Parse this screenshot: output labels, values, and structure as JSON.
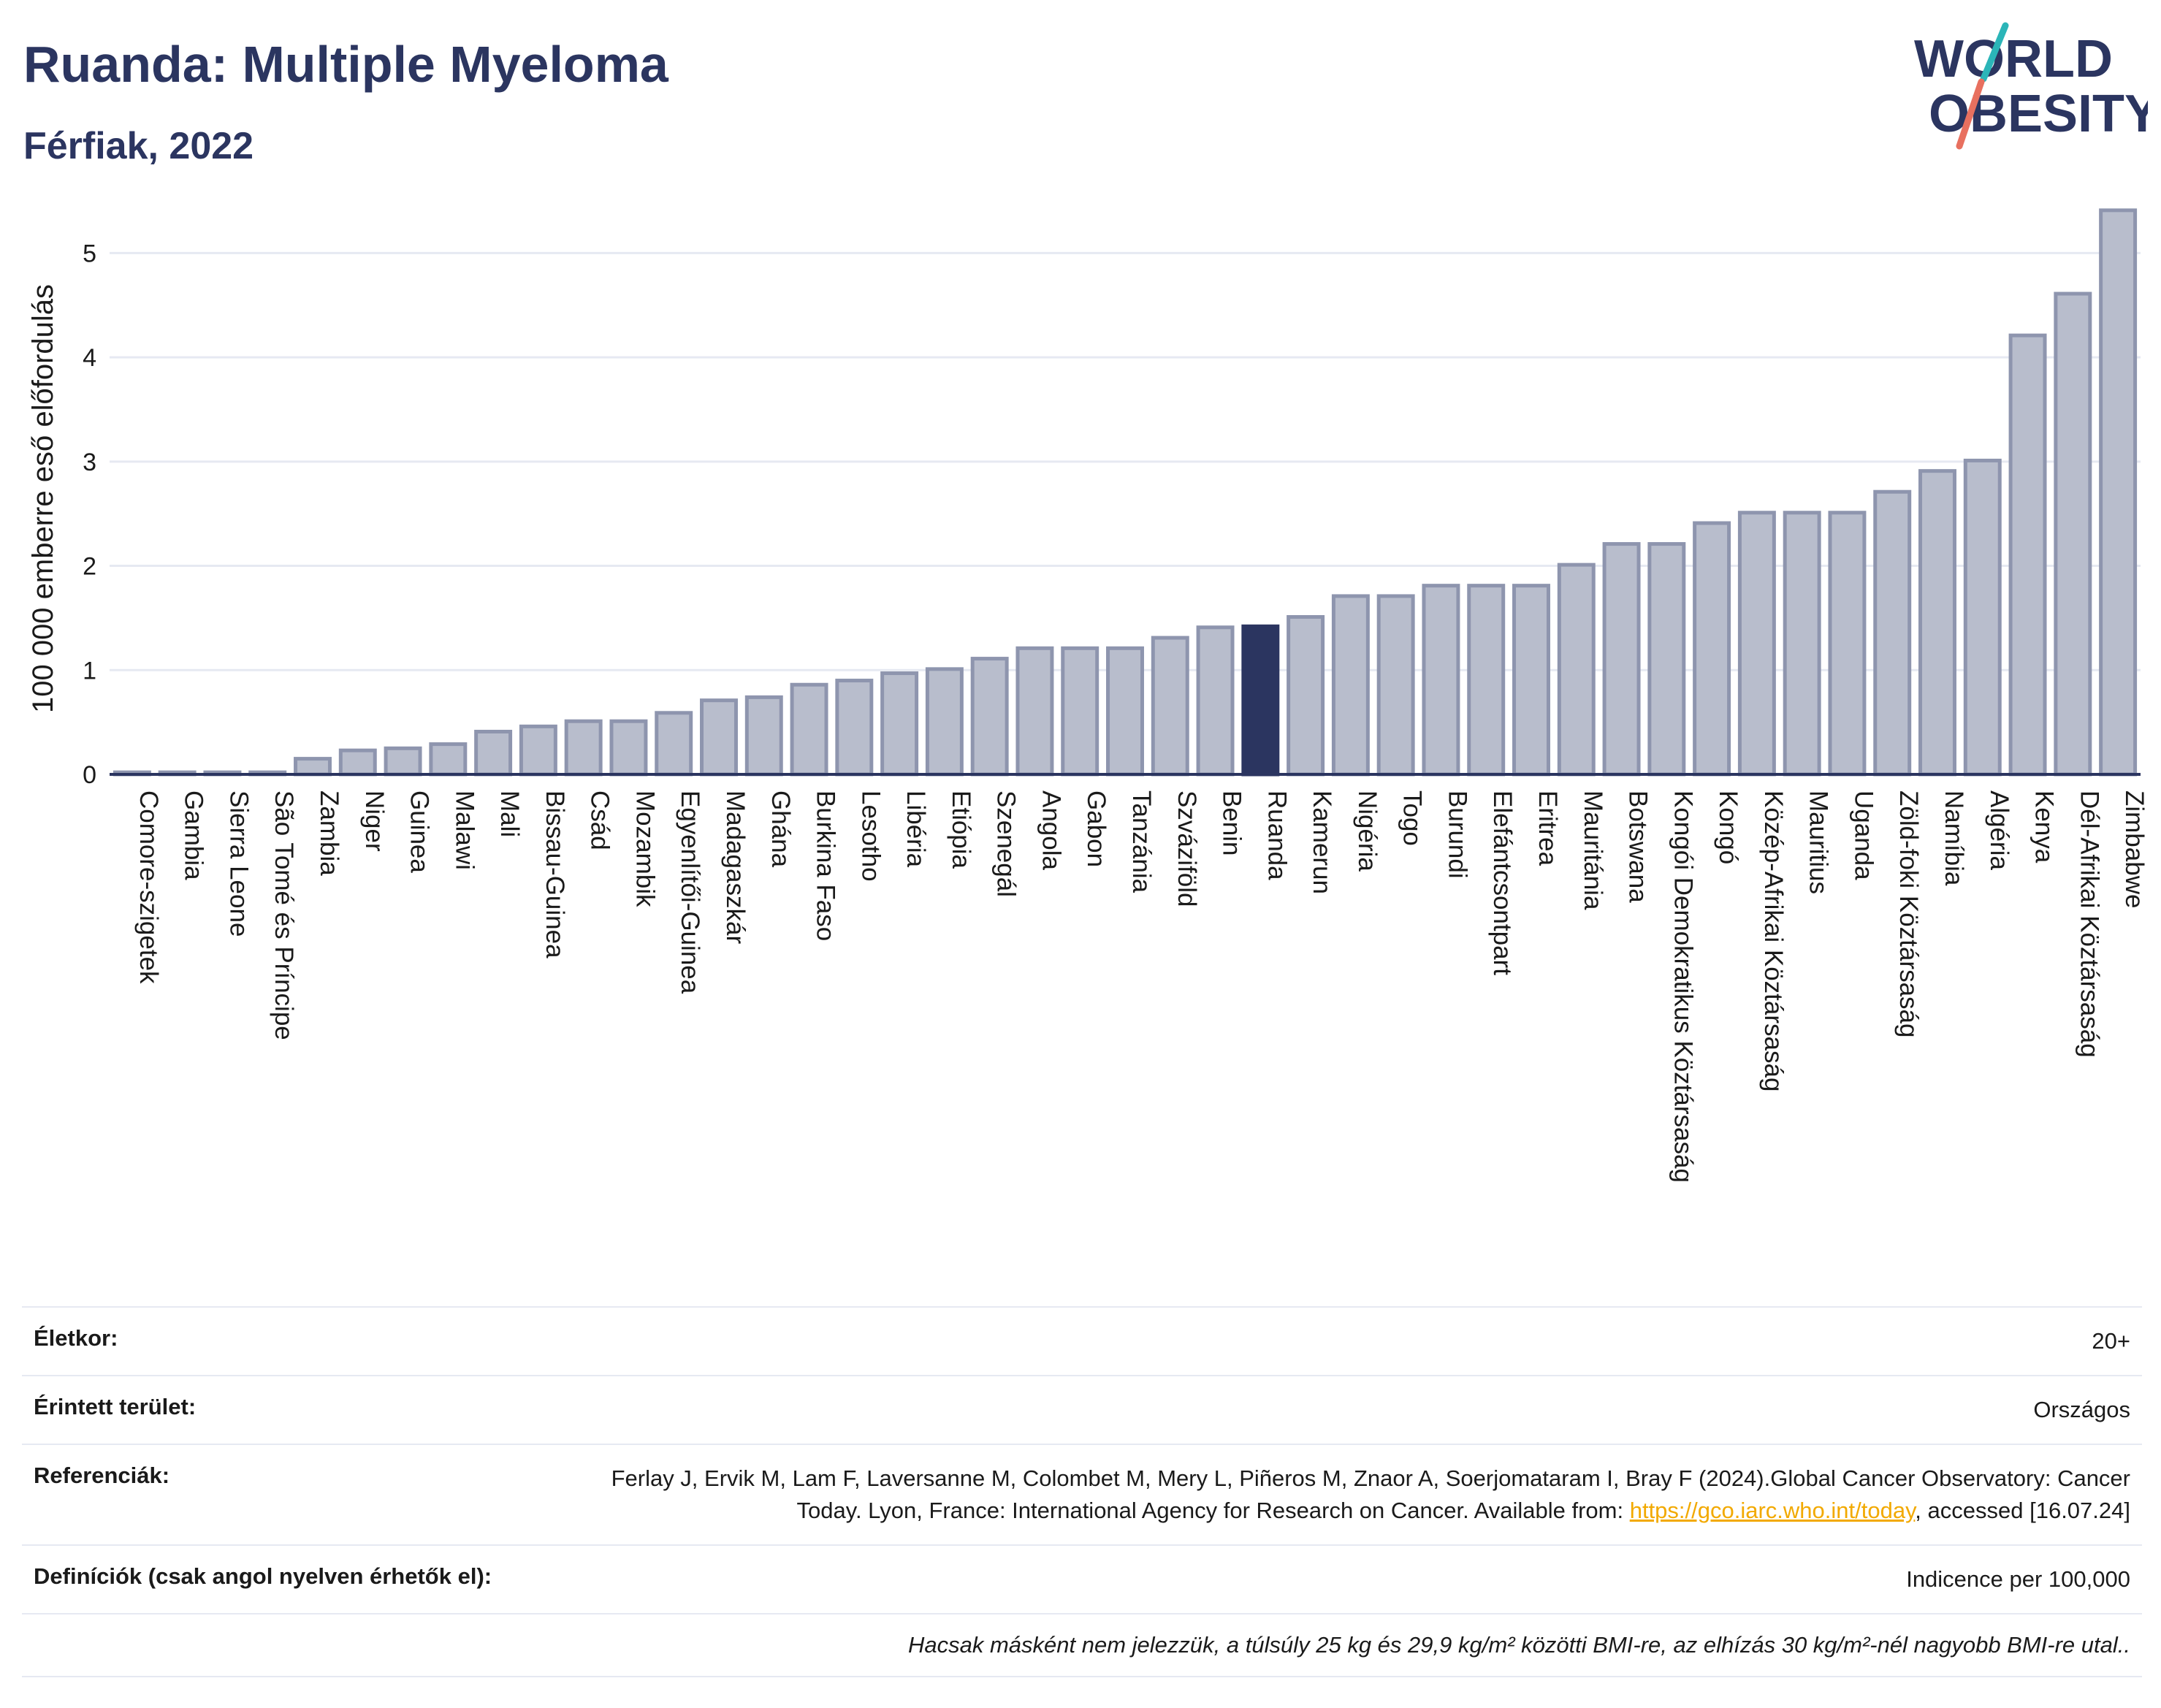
{
  "header": {
    "title": "Ruanda: Multiple Myeloma",
    "subtitle": "Férfiak, 2022"
  },
  "logo": {
    "line1": "WORLD",
    "line2": "OBESITY",
    "icon": "world-obesity-logo"
  },
  "colors": {
    "bar": "#b8bdcc",
    "bar_stroke": "#8e95ae",
    "highlight": "#2b3560",
    "grid": "#e6e9f2",
    "text": "#2b3560",
    "link": "#f2a900"
  },
  "chart_data": {
    "type": "bar",
    "ylabel": "100 000 emberre eső előfordulás",
    "ylim": [
      0,
      5.5
    ],
    "yticks": [
      0,
      1,
      2,
      3,
      4,
      5
    ],
    "highlight": "Ruanda",
    "categories": [
      "Comore-szigetek",
      "Gambia",
      "Sierra Leone",
      "São Tomé és Príncipe",
      "Zambia",
      "Niger",
      "Guinea",
      "Malawi",
      "Mali",
      "Bissau-Guinea",
      "Csád",
      "Mozambik",
      "Egyenlítői-Guinea",
      "Madagaszkár",
      "Ghána",
      "Burkina Faso",
      "Lesotho",
      "Libéria",
      "Etiópia",
      "Szenegál",
      "Angola",
      "Gabon",
      "Tanzánia",
      "Szváziföld",
      "Benin",
      "Ruanda",
      "Kamerun",
      "Nigéria",
      "Togo",
      "Burundi",
      "Elefántcsontpart",
      "Eritrea",
      "Mauritánia",
      "Botswana",
      "Kongói Demokratikus Köztársaság",
      "Kongó",
      "Közép-Afrikai Köztársaság",
      "Mauritius",
      "Uganda",
      "Zöld-foki Köztársaság",
      "Namíbia",
      "Algéria",
      "Kenya",
      "Dél-Afrikai Köztársaság",
      "Zimbabwe"
    ],
    "values": [
      0.02,
      0.02,
      0.02,
      0.02,
      0.15,
      0.23,
      0.25,
      0.29,
      0.41,
      0.46,
      0.51,
      0.51,
      0.59,
      0.71,
      0.74,
      0.86,
      0.9,
      0.97,
      1.01,
      1.11,
      1.21,
      1.21,
      1.21,
      1.31,
      1.41,
      1.42,
      1.51,
      1.71,
      1.71,
      1.81,
      1.81,
      1.81,
      2.01,
      2.21,
      2.21,
      2.41,
      2.51,
      2.51,
      2.51,
      2.71,
      2.91,
      3.01,
      4.21,
      4.61,
      5.41
    ]
  },
  "info": {
    "age_label": "Életkor:",
    "age_value": "20+",
    "area_label": "Érintett terület:",
    "area_value": "Országos",
    "ref_label": "Referenciák:",
    "ref_text1": "Ferlay J, Ervik M, Lam F, Laversanne M, Colombet M, Mery L, Piñeros M, Znaor A, Soerjomataram I, Bray F (2024).Global Cancer Observatory: Cancer Today. Lyon, France: International Agency for Research on Cancer. Available from: ",
    "ref_link": "https://gco.iarc.who.int/today",
    "ref_text2": ", accessed [16.07.24]",
    "def_label": "Definíciók (csak angol nyelven érhetők el):",
    "def_value": "Indicence per 100,000",
    "note": "Hacsak másként nem jelezzük, a túlsúly 25 kg és 29,9 kg/m² közötti BMI-re, az elhízás 30 kg/m²-nél nagyobb BMI-re utal.."
  }
}
